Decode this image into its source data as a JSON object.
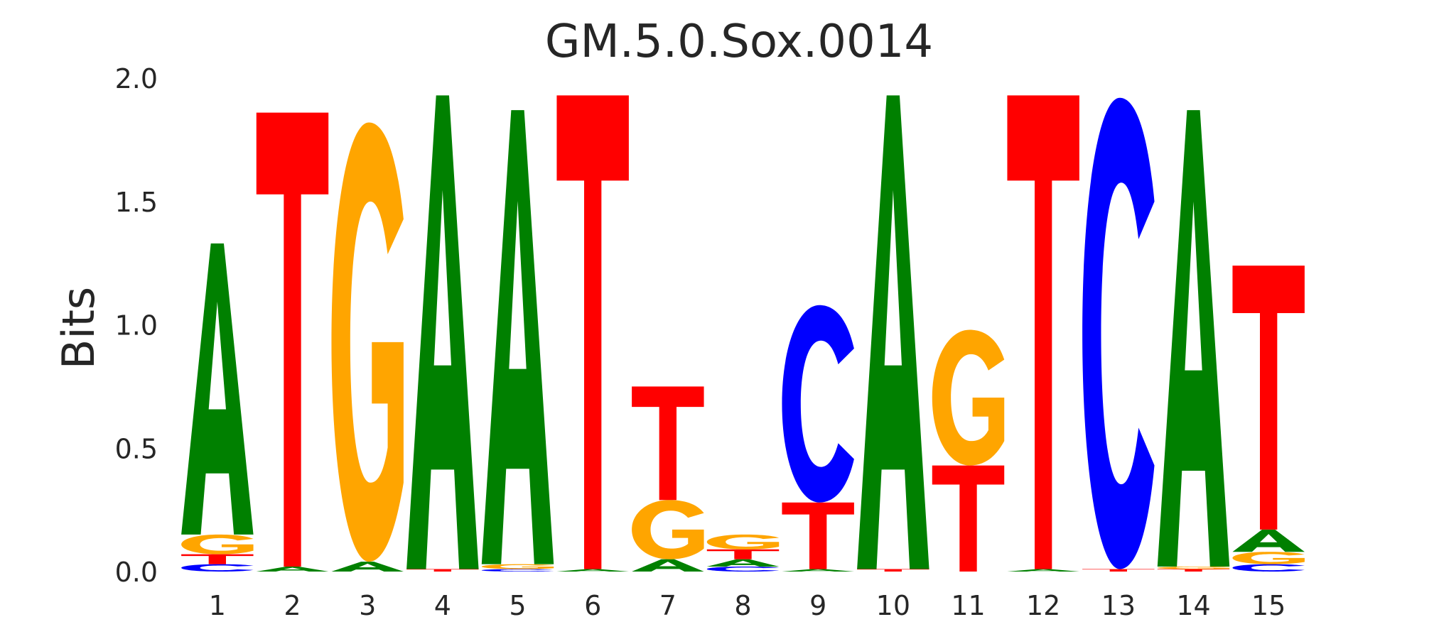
{
  "chart_data": {
    "type": "sequence-logo",
    "title": "GM.5.0.Sox.0014",
    "xlabel": "",
    "ylabel": "Bits",
    "ylim": [
      0,
      2
    ],
    "yticks": [
      "0.0",
      "0.5",
      "1.0",
      "1.5",
      "2.0"
    ],
    "positions": [
      "1",
      "2",
      "3",
      "4",
      "5",
      "6",
      "7",
      "8",
      "9",
      "10",
      "11",
      "12",
      "13",
      "14",
      "15"
    ],
    "grid": false,
    "colors": {
      "A": "#008000",
      "C": "#0000ff",
      "G": "#ffa500",
      "T": "#ff0000"
    },
    "stacks": [
      [
        {
          "letter": "C",
          "bits": 0.03
        },
        {
          "letter": "T",
          "bits": 0.04
        },
        {
          "letter": "G",
          "bits": 0.08
        },
        {
          "letter": "A",
          "bits": 1.18
        }
      ],
      [
        {
          "letter": "A",
          "bits": 0.02
        },
        {
          "letter": "T",
          "bits": 1.84
        }
      ],
      [
        {
          "letter": "A",
          "bits": 0.04
        },
        {
          "letter": "G",
          "bits": 1.78
        }
      ],
      [
        {
          "letter": "T",
          "bits": 0.01
        },
        {
          "letter": "A",
          "bits": 1.92
        }
      ],
      [
        {
          "letter": "C",
          "bits": 0.01
        },
        {
          "letter": "G",
          "bits": 0.02
        },
        {
          "letter": "A",
          "bits": 1.84
        }
      ],
      [
        {
          "letter": "A",
          "bits": 0.01
        },
        {
          "letter": "T",
          "bits": 1.92
        }
      ],
      [
        {
          "letter": "A",
          "bits": 0.05
        },
        {
          "letter": "G",
          "bits": 0.24
        },
        {
          "letter": "T",
          "bits": 0.46
        }
      ],
      [
        {
          "letter": "C",
          "bits": 0.02
        },
        {
          "letter": "A",
          "bits": 0.03
        },
        {
          "letter": "T",
          "bits": 0.04
        },
        {
          "letter": "G",
          "bits": 0.06
        }
      ],
      [
        {
          "letter": "A",
          "bits": 0.01
        },
        {
          "letter": "T",
          "bits": 0.27
        },
        {
          "letter": "C",
          "bits": 0.8
        }
      ],
      [
        {
          "letter": "T",
          "bits": 0.01
        },
        {
          "letter": "A",
          "bits": 1.92
        }
      ],
      [
        {
          "letter": "T",
          "bits": 0.43
        },
        {
          "letter": "G",
          "bits": 0.55
        }
      ],
      [
        {
          "letter": "A",
          "bits": 0.01
        },
        {
          "letter": "T",
          "bits": 1.92
        }
      ],
      [
        {
          "letter": "T",
          "bits": 0.01
        },
        {
          "letter": "C",
          "bits": 1.91
        }
      ],
      [
        {
          "letter": "T",
          "bits": 0.01
        },
        {
          "letter": "G",
          "bits": 0.01
        },
        {
          "letter": "A",
          "bits": 1.85
        }
      ],
      [
        {
          "letter": "C",
          "bits": 0.03
        },
        {
          "letter": "G",
          "bits": 0.05
        },
        {
          "letter": "A",
          "bits": 0.09
        },
        {
          "letter": "T",
          "bits": 1.07
        }
      ]
    ]
  }
}
